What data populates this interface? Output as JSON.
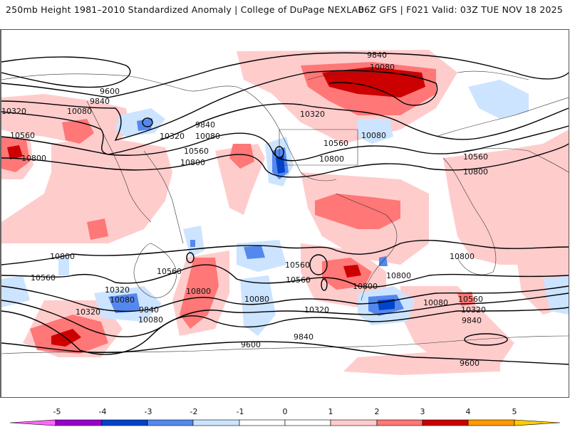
{
  "header": {
    "title_left": "250mb Height 1981–2010 Standardized Anomaly | College of DuPage NEXLAB",
    "title_right": "06Z GFS | F021 Valid: 03Z TUE NOV 18 2025"
  },
  "map": {
    "projection": "global equirectangular",
    "variable": "250mb geopotential height (contours) and standardized anomaly (shaded)",
    "contour_labels": [
      {
        "id": "c1",
        "text": "9600"
      },
      {
        "id": "c2",
        "text": "9840"
      },
      {
        "id": "c3",
        "text": "10320"
      },
      {
        "id": "c4",
        "text": "10080"
      },
      {
        "id": "c5",
        "text": "10560"
      },
      {
        "id": "c6",
        "text": "10800"
      },
      {
        "id": "c7",
        "text": "10320"
      },
      {
        "id": "c8",
        "text": "9840"
      },
      {
        "id": "c9",
        "text": "10080"
      },
      {
        "id": "c10",
        "text": "10560"
      },
      {
        "id": "c11",
        "text": "10800"
      },
      {
        "id": "c12",
        "text": "9840"
      },
      {
        "id": "c13",
        "text": "10080"
      },
      {
        "id": "c14",
        "text": "10320"
      },
      {
        "id": "c15",
        "text": "10080"
      },
      {
        "id": "c16",
        "text": "10560"
      },
      {
        "id": "c17",
        "text": "10800"
      },
      {
        "id": "c18",
        "text": "10560"
      },
      {
        "id": "c19",
        "text": "10800"
      },
      {
        "id": "c20",
        "text": "10800"
      },
      {
        "id": "c21",
        "text": "10560"
      },
      {
        "id": "c22",
        "text": "10320"
      },
      {
        "id": "c23",
        "text": "10080"
      },
      {
        "id": "c24",
        "text": "9840"
      },
      {
        "id": "c25",
        "text": "10560"
      },
      {
        "id": "c26",
        "text": "10800"
      },
      {
        "id": "c27",
        "text": "10080"
      },
      {
        "id": "c28",
        "text": "10560"
      },
      {
        "id": "c29",
        "text": "10320"
      },
      {
        "id": "c30",
        "text": "9840"
      },
      {
        "id": "c31",
        "text": "9600"
      },
      {
        "id": "c32",
        "text": "10800"
      },
      {
        "id": "c33",
        "text": "10560"
      },
      {
        "id": "c34",
        "text": "10800"
      },
      {
        "id": "c35",
        "text": "10080"
      },
      {
        "id": "c36",
        "text": "10320"
      },
      {
        "id": "c37",
        "text": "10560"
      },
      {
        "id": "c38",
        "text": "10080"
      },
      {
        "id": "c39",
        "text": "10320"
      },
      {
        "id": "c40",
        "text": "9840"
      },
      {
        "id": "c41",
        "text": "9600"
      },
      {
        "id": "c42",
        "text": "10800"
      }
    ]
  },
  "colorbar": {
    "ticks": [
      "-5",
      "-4",
      "-3",
      "-2",
      "-1",
      "0",
      "1",
      "2",
      "3",
      "4",
      "5"
    ],
    "colors": {
      "lt_neg5": "#ff66ff",
      "neg5_neg4": "#9900cc",
      "neg4_neg3": "#0044cc",
      "neg3_neg2": "#5588ee",
      "neg2_neg1": "#cce4ff",
      "neg1_0": "#ffffff",
      "pos0_1": "#ffffff",
      "pos1_2": "#ffcccc",
      "pos2_3": "#ff7777",
      "pos3_4": "#cc0000",
      "pos4_5": "#ff9900",
      "gt_5": "#ffcc00"
    }
  }
}
